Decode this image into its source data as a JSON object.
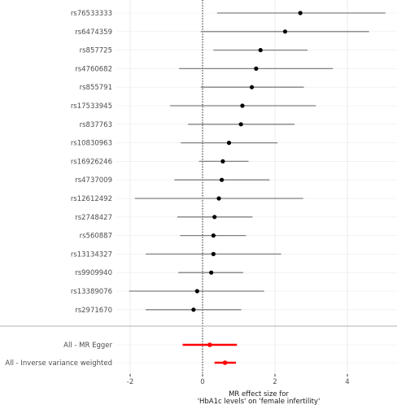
{
  "chart_data": {
    "type": "forest",
    "xlabel": [
      "MR effect size for",
      "'HbA1c levels' on 'female infertility'"
    ],
    "xlim": [
      -2.3,
      5.3
    ],
    "xticks": [
      -2,
      0,
      2,
      4
    ],
    "reference_line": 0,
    "grid": true,
    "snps": [
      {
        "label": "rs76533333",
        "estimate": 2.7,
        "lower": 0.4,
        "upper": 5.05
      },
      {
        "label": "rs6474359",
        "estimate": 2.28,
        "lower": -0.05,
        "upper": 4.6
      },
      {
        "label": "rs857725",
        "estimate": 1.6,
        "lower": 0.3,
        "upper": 2.9
      },
      {
        "label": "rs4760682",
        "estimate": 1.48,
        "lower": -0.65,
        "upper": 3.6
      },
      {
        "label": "rs855791",
        "estimate": 1.36,
        "lower": -0.05,
        "upper": 2.8
      },
      {
        "label": "rs17533945",
        "estimate": 1.1,
        "lower": -0.9,
        "upper": 3.13
      },
      {
        "label": "rs837763",
        "estimate": 1.06,
        "lower": -0.4,
        "upper": 2.54
      },
      {
        "label": "rs10830963",
        "estimate": 0.73,
        "lower": -0.6,
        "upper": 2.07
      },
      {
        "label": "rs16926246",
        "estimate": 0.56,
        "lower": -0.1,
        "upper": 1.27
      },
      {
        "label": "rs4737009",
        "estimate": 0.53,
        "lower": -0.78,
        "upper": 1.85
      },
      {
        "label": "rs12612492",
        "estimate": 0.45,
        "lower": -1.87,
        "upper": 2.78
      },
      {
        "label": "rs2748427",
        "estimate": 0.33,
        "lower": -0.7,
        "upper": 1.38
      },
      {
        "label": "rs560887",
        "estimate": 0.3,
        "lower": -0.62,
        "upper": 1.2
      },
      {
        "label": "rs13134327",
        "estimate": 0.3,
        "lower": -1.57,
        "upper": 2.17
      },
      {
        "label": "rs9909940",
        "estimate": 0.24,
        "lower": -0.67,
        "upper": 1.12
      },
      {
        "label": "rs13389076",
        "estimate": -0.15,
        "lower": -2.03,
        "upper": 1.7
      },
      {
        "label": "rs2971670",
        "estimate": -0.25,
        "lower": -1.57,
        "upper": 1.07
      }
    ],
    "summary": [
      {
        "label": "All - MR Egger",
        "estimate": 0.2,
        "lower": -0.55,
        "upper": 0.95
      },
      {
        "label": "All - Inverse variance weighted",
        "estimate": 0.62,
        "lower": 0.33,
        "upper": 0.92
      }
    ],
    "colors": {
      "background": "#ffffff",
      "grid": "#ebebeb",
      "point": "#000000",
      "snp_ci": "#808080",
      "summary": "#ff0000",
      "separator": "#b3b3b3",
      "reference": "#000000"
    }
  }
}
